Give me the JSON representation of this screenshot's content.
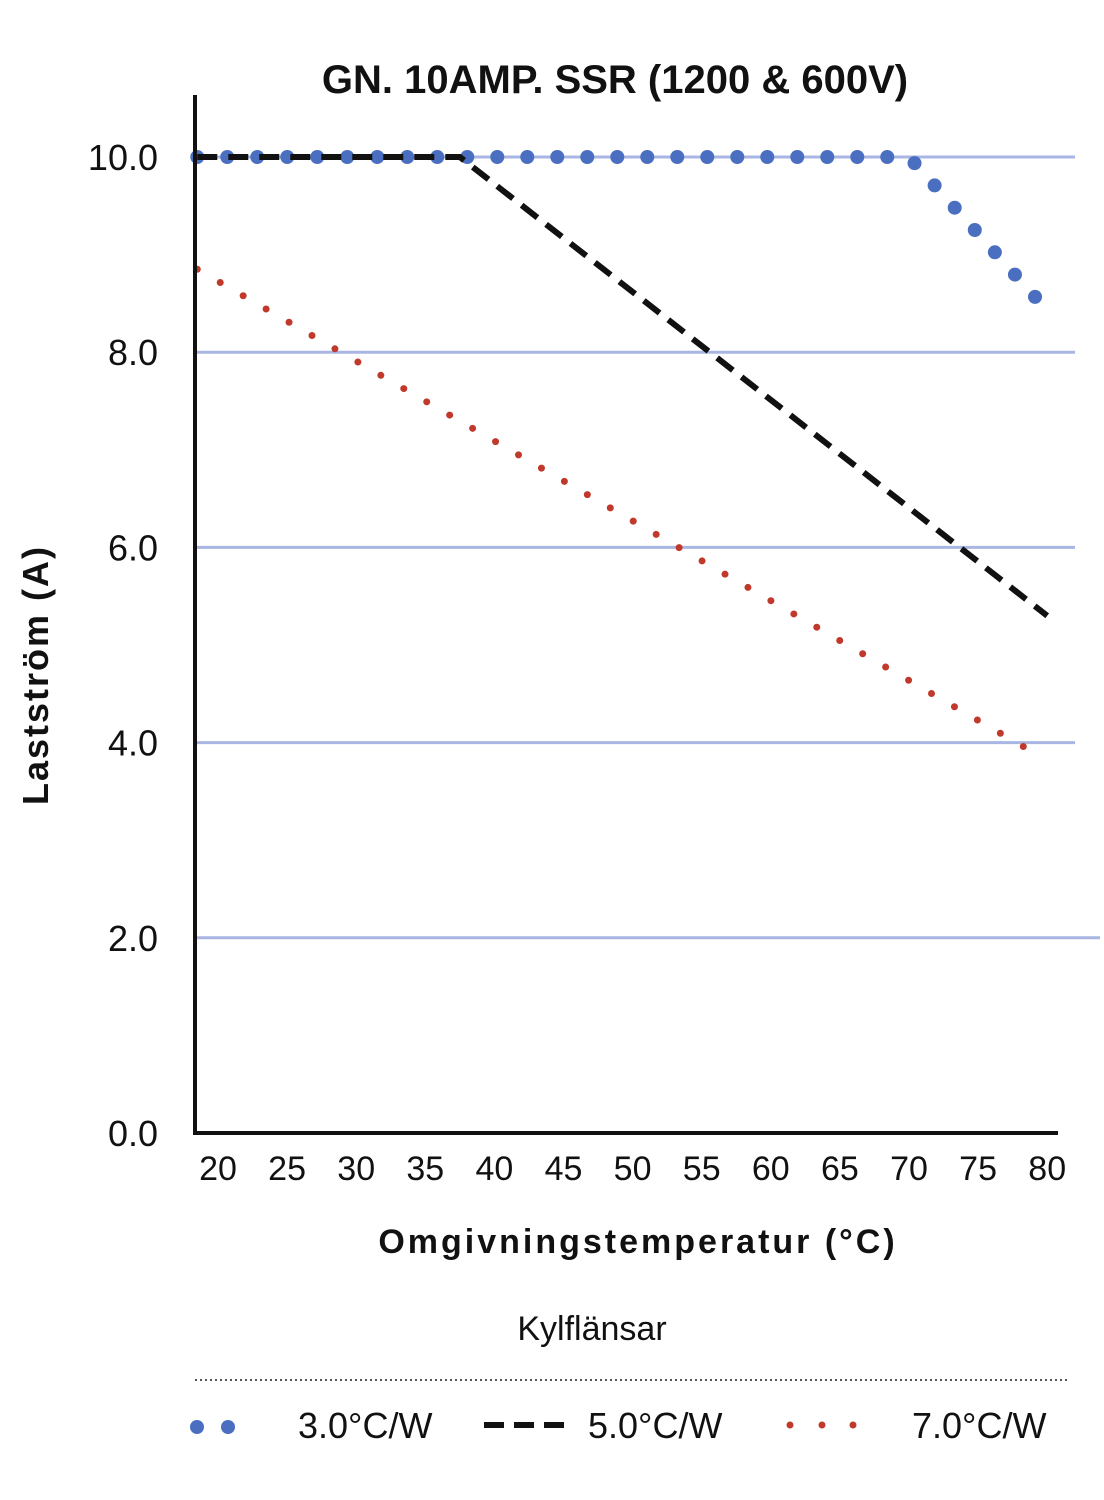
{
  "chart_data": {
    "type": "line",
    "title": "GN. 10AMP. SSR (1200 & 600V)",
    "xlabel": "Omgivningstemperatur (°C)",
    "ylabel": "Lastström (A)",
    "xlim": [
      18.5,
      80
    ],
    "ylim": [
      0,
      10
    ],
    "x_ticks": [
      "20",
      "25",
      "30",
      "35",
      "40",
      "45",
      "50",
      "55",
      "60",
      "65",
      "70",
      "75",
      "80"
    ],
    "y_ticks": [
      "0.0",
      "2.0",
      "4.0",
      "6.0",
      "8.0",
      "10.0"
    ],
    "grid": "horizontal",
    "legend_title": "Kylflänsar",
    "legend_position": "bottom",
    "series": [
      {
        "name": "3.0°C/W",
        "style": "large-dots",
        "color": "#4a6fc0",
        "points": [
          [
            18.5,
            10.0
          ],
          [
            70,
            10.0
          ],
          [
            80.5,
            8.35
          ]
        ]
      },
      {
        "name": "5.0°C/W",
        "style": "dashed",
        "color": "#111111",
        "points": [
          [
            18.5,
            10.0
          ],
          [
            37.5,
            10.0
          ],
          [
            80,
            5.3
          ]
        ]
      },
      {
        "name": "7.0°C/W",
        "style": "small-dots",
        "color": "#c0392b",
        "points": [
          [
            18.5,
            8.85
          ],
          [
            79,
            3.9
          ]
        ]
      }
    ]
  }
}
